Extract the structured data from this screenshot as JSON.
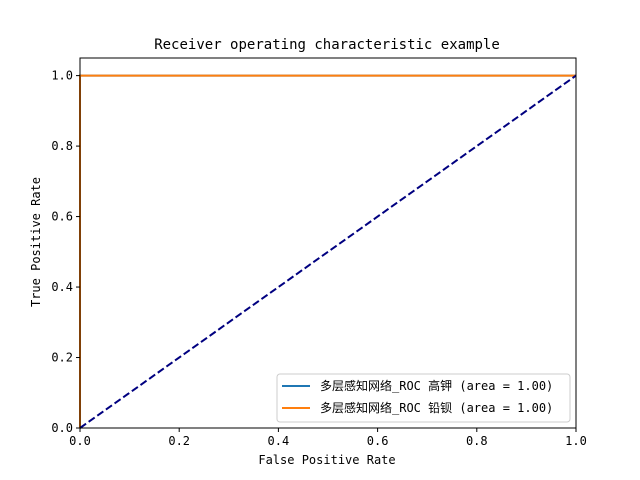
{
  "chart_data": {
    "type": "line",
    "title": "Receiver operating characteristic example",
    "xlabel": "False Positive Rate",
    "ylabel": "True Positive Rate",
    "xlim": [
      0.0,
      1.0
    ],
    "ylim": [
      0.0,
      1.05
    ],
    "xticks": [
      "0.0",
      "0.2",
      "0.4",
      "0.6",
      "0.8",
      "1.0"
    ],
    "yticks": [
      "0.0",
      "0.2",
      "0.4",
      "0.6",
      "0.8",
      "1.0"
    ],
    "grid": false,
    "legend_position": "lower-right",
    "series": [
      {
        "name": "多层感知网络_ROC 高钾 (area = 1.00)",
        "color": "#1f77b4",
        "style": "solid",
        "x": [
          0.0,
          0.0,
          1.0
        ],
        "y": [
          0.0,
          1.0,
          1.0
        ]
      },
      {
        "name": "多层感知网络_ROC 铅钡 (area = 1.00)",
        "color": "#ff7f0e",
        "style": "solid",
        "x": [
          0.0,
          0.0,
          1.0
        ],
        "y": [
          0.0,
          1.0,
          1.0
        ]
      },
      {
        "color": "#000080",
        "style": "dashed",
        "x": [
          0.0,
          1.0
        ],
        "y": [
          0.0,
          1.0
        ]
      }
    ]
  }
}
